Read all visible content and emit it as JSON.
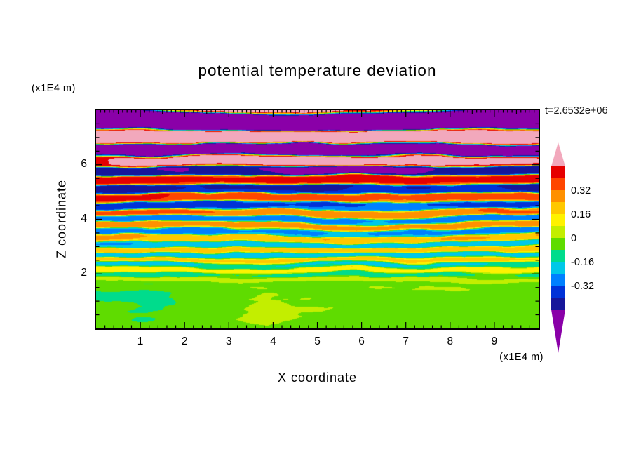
{
  "title": "potential temperature deviation",
  "time_label": "t=2.6532e+06",
  "axes": {
    "x_label": "X coordinate",
    "x_unit": "(x1E4 m)",
    "z_label": "Z coordinate",
    "z_unit": "(x1E4 m)",
    "x_range": [
      0,
      10
    ],
    "z_range": [
      0,
      8
    ],
    "x_ticks": [
      {
        "label": "1",
        "value": 1
      },
      {
        "label": "2",
        "value": 2
      },
      {
        "label": "3",
        "value": 3
      },
      {
        "label": "4",
        "value": 4
      },
      {
        "label": "5",
        "value": 5
      },
      {
        "label": "6",
        "value": 6
      },
      {
        "label": "7",
        "value": 7
      },
      {
        "label": "8",
        "value": 8
      },
      {
        "label": "9",
        "value": 9
      }
    ],
    "z_ticks": [
      {
        "label": "2",
        "value": 2
      },
      {
        "label": "4",
        "value": 4
      },
      {
        "label": "6",
        "value": 6
      }
    ]
  },
  "colorbar": {
    "ticks": [
      {
        "label": "0.32",
        "value": 0.32
      },
      {
        "label": "0.16",
        "value": 0.16
      },
      {
        "label": "0",
        "value": 0
      },
      {
        "label": "-0.16",
        "value": -0.16
      },
      {
        "label": "-0.32",
        "value": -0.32
      }
    ]
  },
  "chart_data": {
    "type": "heatmap",
    "subtype": "filled-contour",
    "title": "potential temperature deviation",
    "xlabel": "X coordinate (x1E4 m)",
    "ylabel": "Z coordinate (x1E4 m)",
    "xlim": [
      0,
      10
    ],
    "ylim": [
      0,
      8
    ],
    "time_annotation": "t=2.6532e+06",
    "band_min": -0.48,
    "band_step": 0.08,
    "band_count": 12,
    "palette": [
      "#8a00a8",
      "#16169a",
      "#0032d8",
      "#0080ff",
      "#00c8e8",
      "#00dc8c",
      "#5fdc00",
      "#c3ee00",
      "#fff200",
      "#ffc800",
      "#ff9000",
      "#ff4600",
      "#e60000",
      "#f2a8bc"
    ],
    "colorbar_tick_values": [
      0.32,
      0.16,
      0,
      -0.16,
      -0.32
    ],
    "legend_position": "right",
    "grid": false,
    "field_description": "Stratified turbulence field of potential temperature deviation: near-zero values (green / spring-green blobs) below z≈2x1E4 m; thin wavy horizontal stripes oscillating between roughly -0.35 and +0.35 (blue/cyan/yellow/orange/red) from z≈2 to z≈4.5; large-amplitude alternating bands beyond ±0.4 (pink positive, purple negative) in the upper half of the domain."
  }
}
